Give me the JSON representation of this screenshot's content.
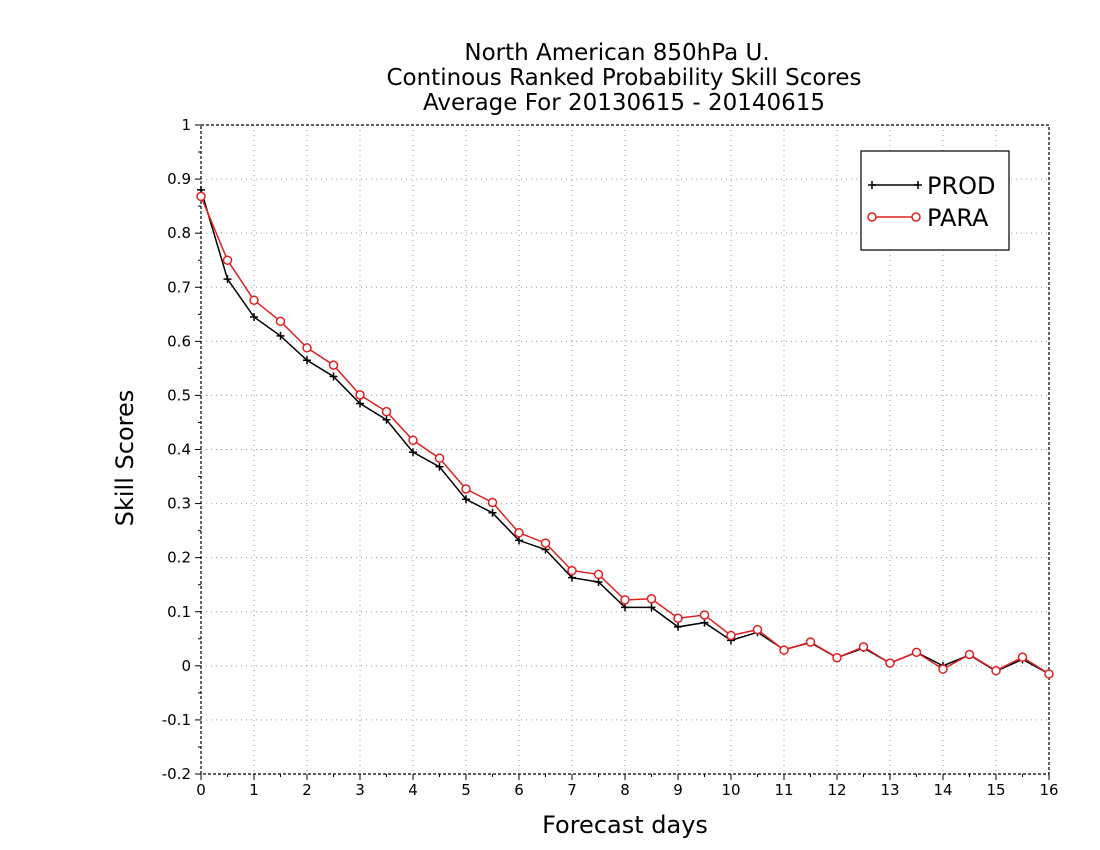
{
  "chart_data": {
    "type": "line",
    "title": [
      "North American 850hPa U.",
      "Continous Ranked Probability Skill Scores",
      "Average For 20130615 - 20140615"
    ],
    "xlabel": "Forecast days",
    "ylabel": "Skill Scores",
    "xlim": [
      0,
      16
    ],
    "ylim": [
      -0.2,
      1
    ],
    "xticks": [
      "0",
      "1",
      "2",
      "3",
      "4",
      "5",
      "6",
      "7",
      "8",
      "9",
      "10",
      "11",
      "12",
      "13",
      "14",
      "15",
      "16"
    ],
    "yticks": [
      "-0.2",
      "-0.1",
      "0",
      "0.1",
      "0.2",
      "0.3",
      "0.4",
      "0.5",
      "0.6",
      "0.7",
      "0.8",
      "0.9",
      "1"
    ],
    "grid": true,
    "legend_position": "top-right",
    "x": [
      0,
      0.5,
      1,
      1.5,
      2,
      2.5,
      3,
      3.5,
      4,
      4.5,
      5,
      5.5,
      6,
      6.5,
      7,
      7.5,
      8,
      8.5,
      9,
      9.5,
      10,
      10.5,
      11,
      11.5,
      12,
      12.5,
      13,
      13.5,
      14,
      14.5,
      15,
      15.5,
      16
    ],
    "series": [
      {
        "name": "PROD",
        "color": "#000000",
        "marker": "plus",
        "values": [
          0.88,
          0.715,
          0.645,
          0.61,
          0.565,
          0.535,
          0.485,
          0.455,
          0.395,
          0.368,
          0.308,
          0.283,
          0.232,
          0.215,
          0.163,
          0.155,
          0.108,
          0.108,
          0.072,
          0.08,
          0.047,
          0.062,
          0.03,
          0.043,
          0.015,
          0.033,
          0.005,
          0.025,
          0.0,
          0.02,
          -0.01,
          0.012,
          -0.015
        ]
      },
      {
        "name": "PARA",
        "color": "#e02020",
        "marker": "circle",
        "values": [
          0.868,
          0.75,
          0.676,
          0.637,
          0.588,
          0.556,
          0.501,
          0.47,
          0.417,
          0.384,
          0.327,
          0.302,
          0.246,
          0.227,
          0.176,
          0.169,
          0.122,
          0.124,
          0.088,
          0.094,
          0.056,
          0.067,
          0.029,
          0.044,
          0.015,
          0.035,
          0.005,
          0.025,
          -0.006,
          0.021,
          -0.009,
          0.016,
          -0.015
        ]
      }
    ]
  }
}
